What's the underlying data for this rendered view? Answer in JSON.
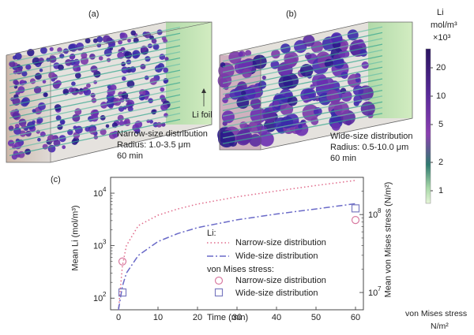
{
  "panel_a": {
    "label": "(a)",
    "caption": [
      "Narrow-size distribution",
      "Radius: 1.0-3.5 μm",
      "60 min"
    ],
    "annotation": "Li foil"
  },
  "panel_b": {
    "label": "(b)",
    "caption": [
      "Wide-size distribution",
      "Radius: 0.5-10.0 μm",
      "60 min"
    ]
  },
  "colorbar": {
    "title": [
      "Li",
      "mol/m³",
      "×10³"
    ],
    "ticks": [
      "20",
      "10",
      "5",
      "2",
      "1"
    ],
    "colors": [
      "#2a1460",
      "#5a2a9a",
      "#8a3fb0",
      "#2f7a6f",
      "#a8d8a8",
      "#e6f5d8"
    ]
  },
  "footer_label": [
    "von Mises stress",
    "N/m²"
  ],
  "chart_data": {
    "type": "line",
    "label": "(c)",
    "xlabel": "Time (min)",
    "ylabel_left": "Mean Li (mol/m³)",
    "ylabel_right": "Mean von Mises stress (N/m²)",
    "xlim": [
      -2,
      62
    ],
    "ylim_left": [
      60,
      20000
    ],
    "ylim_right": [
      6000000,
      300000000
    ],
    "yscale": "log",
    "x_ticks": [
      0,
      10,
      20,
      30,
      40,
      50,
      60
    ],
    "y_left_ticks": [
      {
        "value": 100,
        "base": "10",
        "exp": "2"
      },
      {
        "value": 1000,
        "base": "10",
        "exp": "3"
      },
      {
        "value": 10000,
        "base": "10",
        "exp": "4"
      }
    ],
    "y_right_ticks": [
      {
        "value": 10000000,
        "base": "10",
        "exp": "7"
      },
      {
        "value": 100000000,
        "base": "10",
        "exp": "8"
      }
    ],
    "legend": {
      "group1_title": "Li:",
      "group2_title": "von Mises stress:",
      "position": "center-right"
    },
    "series": [
      {
        "name": "Narrow-size distribution",
        "group": "Li",
        "axis": "left",
        "style": "dotted",
        "color": "#e06a8a",
        "x": [
          0,
          1,
          2,
          5,
          10,
          15,
          20,
          30,
          40,
          50,
          60
        ],
        "y": [
          60,
          420,
          1000,
          2400,
          3800,
          5000,
          6200,
          8500,
          11000,
          14000,
          17500
        ]
      },
      {
        "name": "Wide-size distribution",
        "group": "Li",
        "axis": "left",
        "style": "dashdot",
        "color": "#6a6ac8",
        "x": [
          0,
          1,
          2,
          5,
          10,
          15,
          20,
          30,
          40,
          50,
          60
        ],
        "y": [
          60,
          170,
          300,
          650,
          1200,
          1700,
          2200,
          3100,
          4000,
          5000,
          6300
        ]
      },
      {
        "name": "Narrow-size distribution",
        "group": "von Mises stress",
        "axis": "right",
        "style": "circle",
        "color": "#d87aa0",
        "x": [
          1,
          60
        ],
        "y": [
          25000000,
          85000000
        ]
      },
      {
        "name": "Wide-size distribution",
        "group": "von Mises stress",
        "axis": "right",
        "style": "square",
        "color": "#7a7ac0",
        "x": [
          1,
          60
        ],
        "y": [
          10000000,
          120000000
        ]
      }
    ]
  }
}
